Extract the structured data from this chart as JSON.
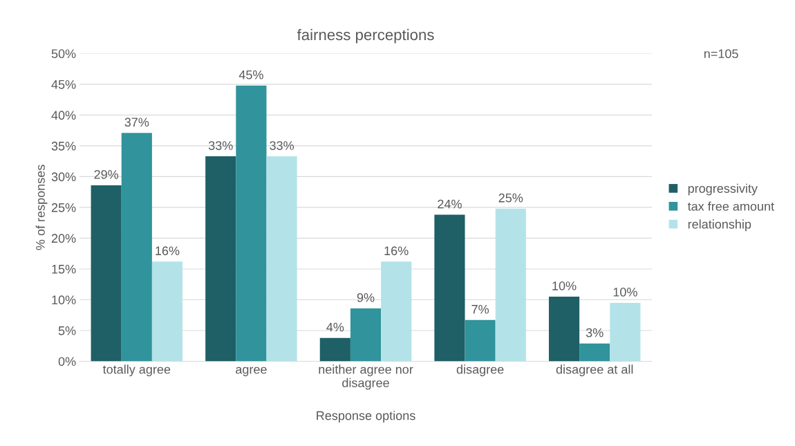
{
  "chart_data": {
    "type": "bar",
    "title": "fairness perceptions",
    "xlabel": "Response options",
    "ylabel": "% of responses",
    "categories": [
      "totally agree",
      "agree",
      "neither agree nor\ndisagree",
      "disagree",
      "disagree at all"
    ],
    "series": [
      {
        "name": "progressivity",
        "color": "#1f5f66",
        "values": [
          28.6,
          33.3,
          3.8,
          23.8,
          10.5
        ],
        "value_labels": [
          "29%",
          "33%",
          "4%",
          "24%",
          "10%"
        ]
      },
      {
        "name": "tax free amount",
        "color": "#31939b",
        "values": [
          37.1,
          44.8,
          8.6,
          6.7,
          2.9
        ],
        "value_labels": [
          "37%",
          "45%",
          "9%",
          "7%",
          "3%"
        ]
      },
      {
        "name": "relationship",
        "color": "#b3e3e8",
        "values": [
          16.2,
          33.3,
          16.2,
          24.8,
          9.5
        ],
        "value_labels": [
          "16%",
          "33%",
          "16%",
          "25%",
          "10%"
        ]
      }
    ],
    "ylim": [
      0,
      50
    ],
    "yticks": [
      {
        "value": 0,
        "label": "0%"
      },
      {
        "value": 5,
        "label": "5%"
      },
      {
        "value": 10,
        "label": "10%"
      },
      {
        "value": 15,
        "label": "15%"
      },
      {
        "value": 20,
        "label": "20%"
      },
      {
        "value": 25,
        "label": "25%"
      },
      {
        "value": 30,
        "label": "30%"
      },
      {
        "value": 35,
        "label": "35%"
      },
      {
        "value": 40,
        "label": "40%"
      },
      {
        "value": 45,
        "label": "45%"
      },
      {
        "value": 50,
        "label": "50%"
      }
    ],
    "grid": "y",
    "legend": "right",
    "annotations": [
      "n=105"
    ]
  }
}
